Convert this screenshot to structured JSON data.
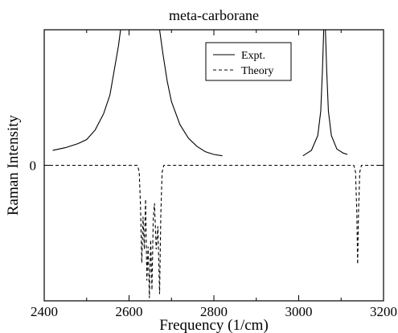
{
  "chart_data": {
    "type": "line",
    "title": "meta-carborane",
    "xlabel": "Frequency (1/cm)",
    "ylabel": "Raman Intensity",
    "xlim": [
      2400,
      3200
    ],
    "ylim": [
      -1,
      1
    ],
    "xticks": [
      2400,
      2600,
      2800,
      3000,
      3200
    ],
    "yticks": [
      {
        "value": 0,
        "label": "0"
      }
    ],
    "grid": false,
    "legend": {
      "position": "top-right",
      "entries": [
        "Expt.",
        "Theory"
      ]
    },
    "series": [
      {
        "name": "Expt.",
        "style": "solid",
        "segments": [
          [
            [
              2420,
              0.11
            ],
            [
              2450,
              0.13
            ],
            [
              2480,
              0.16
            ],
            [
              2500,
              0.19
            ],
            [
              2520,
              0.26
            ],
            [
              2540,
              0.38
            ],
            [
              2555,
              0.52
            ],
            [
              2565,
              0.7
            ],
            [
              2575,
              0.88
            ],
            [
              2580,
              1.0
            ]
          ],
          [
            [
              2672,
              1.0
            ],
            [
              2680,
              0.82
            ],
            [
              2690,
              0.62
            ],
            [
              2700,
              0.47
            ],
            [
              2720,
              0.3
            ],
            [
              2740,
              0.2
            ],
            [
              2760,
              0.14
            ],
            [
              2780,
              0.1
            ],
            [
              2800,
              0.08
            ],
            [
              2820,
              0.07
            ]
          ],
          [
            [
              3010,
              0.07
            ],
            [
              3030,
              0.11
            ],
            [
              3045,
              0.22
            ],
            [
              3052,
              0.4
            ],
            [
              3056,
              0.7
            ],
            [
              3059,
              1.0
            ],
            [
              3063,
              1.0
            ],
            [
              3066,
              0.7
            ],
            [
              3070,
              0.4
            ],
            [
              3077,
              0.22
            ],
            [
              3090,
              0.12
            ],
            [
              3105,
              0.09
            ],
            [
              3115,
              0.08
            ]
          ]
        ]
      },
      {
        "name": "Theory",
        "style": "dashed",
        "points": [
          [
            2400,
            0
          ],
          [
            2620,
            0
          ],
          [
            2624,
            -0.05
          ],
          [
            2627,
            -0.3
          ],
          [
            2630,
            -0.72
          ],
          [
            2633,
            -0.38
          ],
          [
            2636,
            -0.62
          ],
          [
            2639,
            -0.25
          ],
          [
            2642,
            -0.85
          ],
          [
            2645,
            -0.6
          ],
          [
            2648,
            -0.98
          ],
          [
            2651,
            -0.55
          ],
          [
            2654,
            -0.92
          ],
          [
            2657,
            -0.4
          ],
          [
            2660,
            -0.28
          ],
          [
            2664,
            -0.62
          ],
          [
            2668,
            -0.45
          ],
          [
            2672,
            -0.95
          ],
          [
            2675,
            -0.35
          ],
          [
            2678,
            -0.05
          ],
          [
            2682,
            0
          ],
          [
            3130,
            0
          ],
          [
            3134,
            -0.05
          ],
          [
            3137,
            -0.35
          ],
          [
            3139,
            -0.73
          ],
          [
            3141,
            -0.35
          ],
          [
            3144,
            -0.05
          ],
          [
            3148,
            0
          ],
          [
            3200,
            0
          ]
        ]
      }
    ]
  }
}
